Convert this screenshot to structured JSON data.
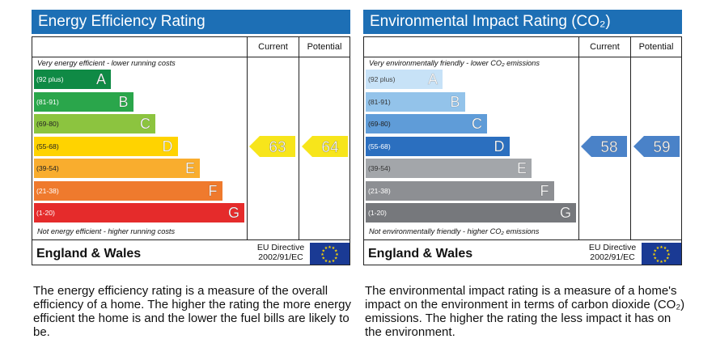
{
  "energy": {
    "title": "Energy Efficiency Rating",
    "col_current": "Current",
    "col_potential": "Potential",
    "top_note": "Very energy efficient - lower running costs",
    "bottom_note": "Not energy efficient - higher running costs",
    "region": "England & Wales",
    "directive_line1": "EU Directive",
    "directive_line2": "2002/91/EC",
    "description": "The energy efficiency rating is a measure of the overall efficiency of a home. The higher the rating the more energy efficient the home is and the lower the fuel bills are likely to be.",
    "colors": {
      "header": "#1d6fb5",
      "arrow": "#f7e51b"
    }
  },
  "environment": {
    "title": "Environmental Impact Rating (CO₂)",
    "col_current": "Current",
    "col_potential": "Potential",
    "top_note": "Very environmentally friendly - lower CO₂ emissions",
    "bottom_note": "Not environmentally friendly - higher CO₂ emissions",
    "region": "England & Wales",
    "directive_line1": "EU Directive",
    "directive_line2": "2002/91/EC",
    "description": "The environmental impact rating is a measure of a home's impact on the environment in terms of carbon dioxide (CO₂) emissions. The higher the rating the less impact it has on the environment.",
    "colors": {
      "header": "#1d6fb5",
      "arrow": "#4a82c8"
    }
  },
  "chart_data": [
    {
      "type": "bar",
      "title": "Energy Efficiency Rating",
      "categories": [
        "A",
        "B",
        "C",
        "D",
        "E",
        "F",
        "G"
      ],
      "ranges": [
        "(92 plus)",
        "(81-91)",
        "(69-80)",
        "(55-68)",
        "(39-54)",
        "(21-38)",
        "(1-20)"
      ],
      "colors": [
        "#0f8a45",
        "#2aa64b",
        "#8cc43f",
        "#ffd300",
        "#f9ad2e",
        "#ef7a2d",
        "#e52b2b"
      ],
      "current": 63,
      "potential": 64
    },
    {
      "type": "bar",
      "title": "Environmental Impact Rating (CO₂)",
      "categories": [
        "A",
        "B",
        "C",
        "D",
        "E",
        "F",
        "G"
      ],
      "ranges": [
        "(92 plus)",
        "(81-91)",
        "(69-80)",
        "(55-68)",
        "(39-54)",
        "(21-38)",
        "(1-20)"
      ],
      "colors": [
        "#c7e2f7",
        "#93c3ea",
        "#5f9cd8",
        "#2b6fbf",
        "#a3a6aa",
        "#8d8f93",
        "#76787c"
      ],
      "current": 58,
      "potential": 59
    }
  ]
}
